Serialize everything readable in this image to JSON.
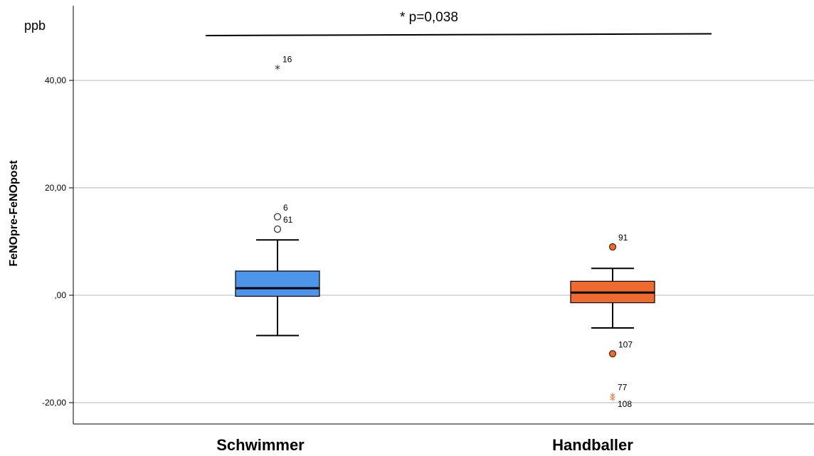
{
  "chart_data": {
    "type": "boxplot",
    "unit": "ppb",
    "ylabel": "FeNOpre-FeNOpost",
    "yticks": [
      {
        "value": 40,
        "label": "40,00"
      },
      {
        "value": 20,
        "label": "20,00"
      },
      {
        "value": 0,
        "label": ",00"
      },
      {
        "value": -20,
        "label": "-20,00"
      }
    ],
    "ylim": [
      -24.5,
      54
    ],
    "grid": true,
    "categories": [
      "Schwimmer",
      "Handballer"
    ],
    "annotation": "* p=0,038",
    "boxes": [
      {
        "name": "Schwimmer",
        "color": "#4e94e8",
        "whisker_low": -7.5,
        "q1": -0.2,
        "median": 1.3,
        "q3": 4.5,
        "whisker_high": 10.3,
        "outliers": [
          {
            "value": 14.6,
            "label": "6",
            "kind": "circle"
          },
          {
            "value": 12.3,
            "label": "61",
            "kind": "circle"
          },
          {
            "value": 42.2,
            "label": "16",
            "kind": "star"
          }
        ]
      },
      {
        "name": "Handballer",
        "color": "#f06a2e",
        "whisker_low": -6.1,
        "q1": -1.4,
        "median": 0.5,
        "q3": 2.6,
        "whisker_high": 5.0,
        "outliers": [
          {
            "value": 9.0,
            "label": "91",
            "kind": "circle"
          },
          {
            "value": -10.9,
            "label": "107",
            "kind": "circle"
          },
          {
            "value": -18.9,
            "label": "77",
            "kind": "star"
          },
          {
            "value": -19.5,
            "label": "108",
            "kind": "star"
          }
        ]
      }
    ]
  }
}
